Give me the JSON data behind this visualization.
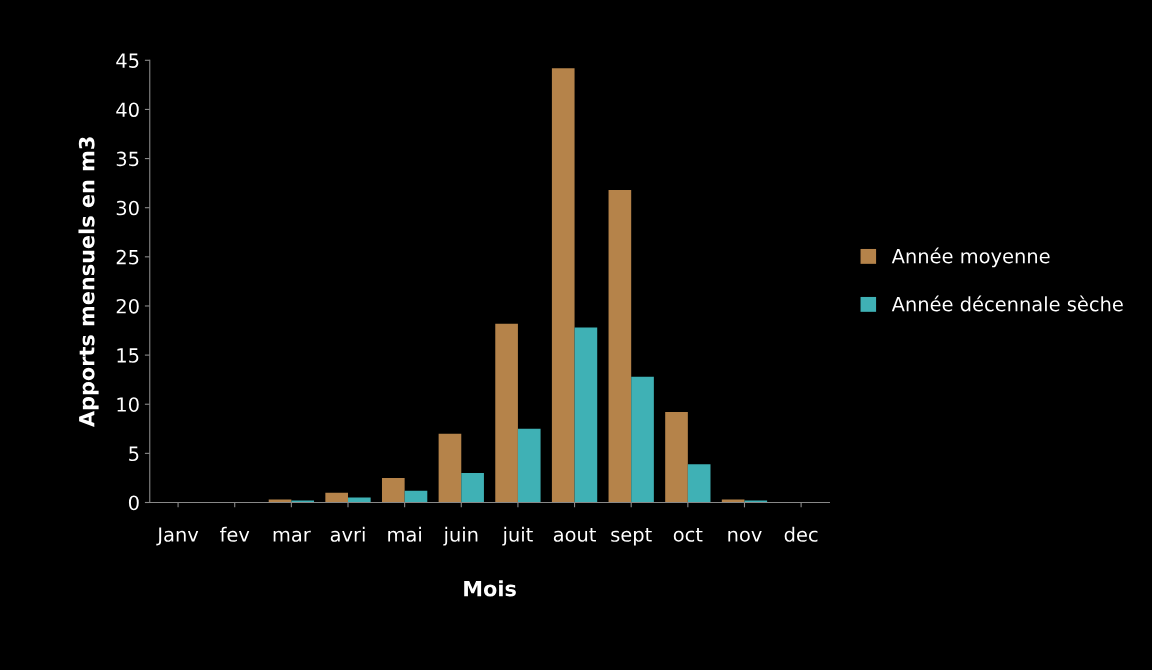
{
  "chart_data": {
    "type": "bar",
    "xlabel": "Mois",
    "ylabel": "Apports mensuels en m3",
    "categories": [
      "Janv",
      "fev",
      "mar",
      "avri",
      "mai",
      "juin",
      "juit",
      "aout",
      "sept",
      "oct",
      "nov",
      "dec"
    ],
    "series": [
      {
        "name": "Année moyenne",
        "color": "#b5834a",
        "values": [
          0,
          0,
          0.3,
          1,
          2.5,
          7,
          18.2,
          44.2,
          31.8,
          9.2,
          0.3,
          0
        ]
      },
      {
        "name": "Année décennale sèche",
        "color": "#3fb1b5",
        "values": [
          0,
          0,
          0.2,
          0.5,
          1.2,
          3,
          7.5,
          17.8,
          12.8,
          3.9,
          0.2,
          0
        ]
      }
    ],
    "ylim": [
      0,
      45
    ],
    "yticks": [
      0,
      5,
      10,
      15,
      20,
      25,
      30,
      35,
      40,
      45
    ],
    "grid": false,
    "legend": "right"
  }
}
